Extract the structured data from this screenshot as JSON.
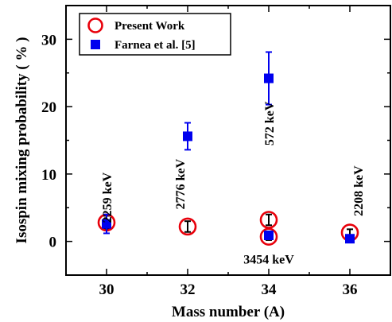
{
  "chart_data": {
    "type": "scatter",
    "xlabel": "Mass number (A)",
    "ylabel": "Isospin mixing probability ( % )",
    "xlim": [
      29,
      37
    ],
    "ylim": [
      -5,
      35
    ],
    "xticks": [
      30,
      32,
      34,
      36
    ],
    "yticks": [
      0,
      10,
      20,
      30
    ],
    "grid": false,
    "legend_position": "top-left",
    "series": [
      {
        "name": "Present Work",
        "marker": "open-circle",
        "color": "#e8000b",
        "points": [
          {
            "x": 30,
            "y": 2.8,
            "yerr": 1.0
          },
          {
            "x": 32,
            "y": 2.2,
            "yerr": 0.8
          },
          {
            "x": 34,
            "y": 3.2,
            "yerr": 0.8
          },
          {
            "x": 34,
            "y": 0.7,
            "yerr": 0.5
          },
          {
            "x": 36,
            "y": 1.3,
            "yerr": 0.5
          }
        ]
      },
      {
        "name": "Farnea et al. [5]",
        "marker": "filled-square",
        "color": "#0000ee",
        "points": [
          {
            "x": 30,
            "y": 2.6,
            "yerr": 1.4
          },
          {
            "x": 32,
            "y": 15.6,
            "yerr": 2.0
          },
          {
            "x": 34,
            "y": 24.2,
            "yerr": 3.9
          },
          {
            "x": 34,
            "y": 0.9,
            "yerr": 0.5
          },
          {
            "x": 36,
            "y": 0.4,
            "yerr": 0.3
          }
        ]
      }
    ],
    "annotations": [
      {
        "text": "2259 keV",
        "x": 30,
        "y": 6.5,
        "rotate": true
      },
      {
        "text": "2776 keV",
        "x": 31.8,
        "y": 8.5,
        "rotate": true
      },
      {
        "text": "572 keV",
        "x": 34,
        "y": 17.5,
        "rotate": true
      },
      {
        "text": "2208 keV",
        "x": 36.2,
        "y": 7.5,
        "rotate": true
      },
      {
        "text": "3454 keV",
        "x": 34,
        "y": -2.6,
        "rotate": false
      }
    ]
  }
}
